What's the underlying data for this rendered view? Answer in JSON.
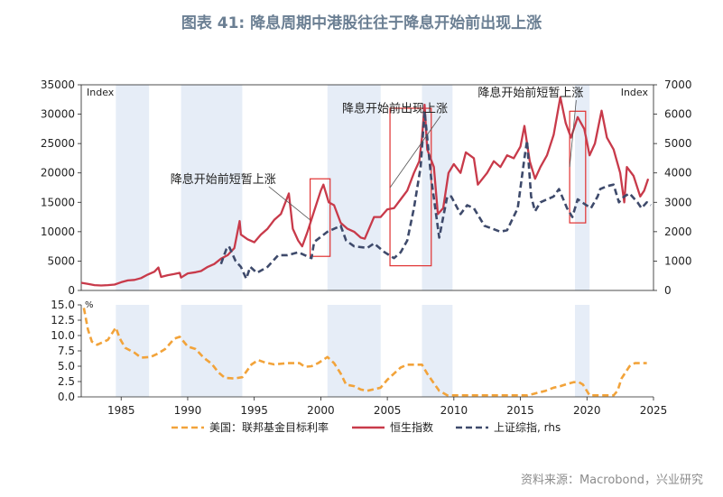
{
  "title": "图表 41: 降息周期中港股往往于降息开始前出现上涨",
  "source": "资料来源：Macrobond，兴业研究",
  "chart_data": {
    "type": "line",
    "title": "图表 41: 降息周期中港股往往于降息开始前出现上涨",
    "x_range": [
      1982,
      2025
    ],
    "x_ticks": [
      1985,
      1990,
      1995,
      2000,
      2005,
      2010,
      2015,
      2020,
      2025
    ],
    "top_panel": {
      "left_axis": {
        "label": "Index",
        "range": [
          0,
          35000
        ],
        "ticks": [
          0,
          5000,
          10000,
          15000,
          20000,
          25000,
          30000,
          35000
        ]
      },
      "right_axis": {
        "label": "Index",
        "range": [
          0,
          7000
        ],
        "ticks": [
          0,
          1000,
          2000,
          3000,
          4000,
          5000,
          6000,
          7000
        ]
      }
    },
    "bottom_panel": {
      "label": "%",
      "range": [
        0,
        15
      ],
      "ticks": [
        0.0,
        2.5,
        5.0,
        7.5,
        10.0,
        12.5,
        15.0
      ],
      "tick_labels": [
        "0.0",
        "2.5",
        "5.0",
        "7.5",
        "10.0",
        "12.5",
        "15.0"
      ]
    },
    "shaded_periods": [
      [
        1984.6,
        1987.1
      ],
      [
        1989.5,
        1994.1
      ],
      [
        2000.5,
        2004.5
      ],
      [
        2007.6,
        2009.9
      ],
      [
        2019.1,
        2020.2
      ]
    ],
    "rectangles": [
      {
        "x": [
          1999.2,
          2000.7
        ],
        "y": [
          5800,
          19000
        ]
      },
      {
        "x": [
          2005.2,
          2008.3
        ],
        "y": [
          4200,
          31000
        ]
      },
      {
        "x": [
          2018.7,
          2019.9
        ],
        "y": [
          11500,
          30500
        ]
      }
    ],
    "annotations": [
      {
        "text": "降息开始前出现上涨",
        "x": 2001.6,
        "y": 30300,
        "arrow_to": [
          2005.2,
          17500
        ]
      },
      {
        "text": "降息开始前短暂上涨",
        "x": 1988.7,
        "y": 18300,
        "arrow_to": [
          1999.2,
          12000
        ]
      },
      {
        "text": "降息开始前短暂上涨",
        "x": 2011.8,
        "y": 33000,
        "arrow_to": [
          2018.7,
          21000
        ]
      }
    ],
    "series": [
      {
        "name": "美国：联邦基金目标利率",
        "axis": "bottom",
        "color": "#f2a33a",
        "style": "dashed",
        "x": [
          1982.2,
          1982.5,
          1982.8,
          1983.2,
          1984.0,
          1984.6,
          1984.9,
          1985.3,
          1986.0,
          1986.5,
          1987.2,
          1987.7,
          1988.3,
          1989.0,
          1989.4,
          1990.0,
          1990.6,
          1991.2,
          1991.8,
          1992.3,
          1992.8,
          1993.5,
          1994.1,
          1994.8,
          1995.3,
          1995.8,
          1996.5,
          1997.5,
          1998.4,
          1998.8,
          1999.3,
          1999.8,
          2000.5,
          2001.0,
          2001.5,
          2001.9,
          2002.5,
          2003.0,
          2003.5,
          2004.5,
          2005.0,
          2005.5,
          2006.0,
          2006.5,
          2007.6,
          2008.0,
          2008.5,
          2008.9,
          2009.5,
          2012.0,
          2015.5,
          2016.0,
          2016.9,
          2017.5,
          2018.0,
          2018.5,
          2019.0,
          2019.4,
          2019.7,
          2020.2,
          2021.0,
          2022.0,
          2022.3,
          2022.6,
          2022.9,
          2023.2,
          2023.6,
          2024.5
        ],
        "values": [
          14.5,
          11.0,
          9.0,
          8.5,
          9.3,
          11.3,
          9.5,
          8.0,
          7.2,
          6.4,
          6.5,
          7.0,
          7.8,
          9.5,
          9.8,
          8.2,
          7.8,
          6.4,
          5.4,
          4.0,
          3.1,
          3.0,
          3.2,
          5.3,
          6.0,
          5.6,
          5.3,
          5.5,
          5.5,
          4.9,
          5.0,
          5.5,
          6.5,
          5.5,
          3.8,
          2.0,
          1.75,
          1.2,
          1.0,
          1.5,
          2.8,
          3.8,
          4.8,
          5.25,
          5.25,
          3.8,
          2.2,
          1.0,
          0.25,
          0.25,
          0.25,
          0.5,
          1.0,
          1.5,
          1.75,
          2.1,
          2.4,
          2.4,
          2.0,
          0.25,
          0.25,
          0.25,
          1.0,
          3.0,
          4.0,
          5.0,
          5.5,
          5.5
        ]
      },
      {
        "name": "恒生指数",
        "axis": "left",
        "color": "#c83a4a",
        "style": "solid",
        "x": [
          1982.0,
          1982.5,
          1983.0,
          1983.5,
          1984.0,
          1984.5,
          1985.0,
          1985.5,
          1986.0,
          1986.5,
          1987.0,
          1987.5,
          1987.8,
          1988.0,
          1988.5,
          1989.0,
          1989.4,
          1989.5,
          1990.0,
          1990.6,
          1991.0,
          1991.5,
          1992.0,
          1992.5,
          1993.0,
          1993.5,
          1993.9,
          1994.0,
          1994.5,
          1995.0,
          1995.5,
          1996.0,
          1996.5,
          1997.0,
          1997.6,
          1997.9,
          1998.3,
          1998.6,
          1999.0,
          1999.5,
          2000.0,
          2000.2,
          2000.6,
          2001.0,
          2001.5,
          2002.0,
          2002.5,
          2003.0,
          2003.3,
          2004.0,
          2004.5,
          2005.0,
          2005.5,
          2006.0,
          2006.5,
          2007.0,
          2007.4,
          2007.6,
          2007.8,
          2008.0,
          2008.5,
          2008.8,
          2009.2,
          2009.6,
          2010.0,
          2010.5,
          2010.9,
          2011.5,
          2011.8,
          2012.5,
          2013.0,
          2013.5,
          2014.0,
          2014.5,
          2015.0,
          2015.3,
          2015.7,
          2016.1,
          2016.5,
          2017.0,
          2017.5,
          2018.0,
          2018.4,
          2018.8,
          2019.3,
          2019.8,
          2020.2,
          2020.6,
          2021.1,
          2021.5,
          2022.0,
          2022.5,
          2022.8,
          2023.0,
          2023.5,
          2024.0,
          2024.3,
          2024.6
        ],
        "values": [
          1300,
          1100,
          900,
          850,
          900,
          1000,
          1400,
          1700,
          1800,
          2100,
          2700,
          3200,
          3900,
          2300,
          2600,
          2800,
          3000,
          2200,
          2900,
          3100,
          3300,
          4000,
          4500,
          5400,
          6000,
          7200,
          11800,
          9500,
          8700,
          8200,
          9500,
          10500,
          12000,
          13000,
          16500,
          10500,
          8500,
          7500,
          10000,
          13500,
          17000,
          18000,
          15000,
          14500,
          11500,
          10500,
          10000,
          9000,
          8800,
          12500,
          12500,
          13800,
          14000,
          15500,
          17000,
          20000,
          22000,
          26000,
          31600,
          24000,
          21000,
          13000,
          14000,
          20000,
          21500,
          20000,
          23500,
          22500,
          18000,
          20000,
          22000,
          21000,
          23000,
          22500,
          24500,
          28000,
          22000,
          19000,
          21000,
          23000,
          26500,
          32900,
          28500,
          26000,
          29500,
          27500,
          23000,
          25000,
          30600,
          26000,
          24000,
          20000,
          15000,
          21000,
          19500,
          16000,
          17000,
          19000
        ]
      },
      {
        "name": "上证综指, rhs",
        "axis": "right",
        "color": "#3e4a6b",
        "style": "dashed",
        "x": [
          1992.5,
          1992.9,
          1993.1,
          1993.6,
          1994.0,
          1994.4,
          1994.7,
          1995.2,
          1996.0,
          1996.8,
          1997.5,
          1998.3,
          1998.8,
          1999.3,
          1999.5,
          2000.5,
          2001.5,
          2001.9,
          2002.5,
          2003.5,
          2004.0,
          2004.8,
          2005.5,
          2006.0,
          2006.5,
          2007.0,
          2007.5,
          2007.8,
          2008.3,
          2008.9,
          2009.5,
          2009.8,
          2010.5,
          2011.0,
          2011.5,
          2012.3,
          2012.9,
          2013.5,
          2014.0,
          2014.8,
          2015.3,
          2015.5,
          2015.8,
          2016.1,
          2016.5,
          2017.5,
          2017.9,
          2018.5,
          2018.9,
          2019.3,
          2019.8,
          2020.3,
          2020.8,
          2021.0,
          2021.5,
          2022.0,
          2022.4,
          2022.8,
          2023.2,
          2023.8,
          2024.1,
          2024.5,
          2024.8
        ],
        "values": [
          900,
          1400,
          1500,
          1000,
          800,
          400,
          800,
          600,
          800,
          1200,
          1200,
          1300,
          1200,
          1100,
          1650,
          2000,
          2200,
          1700,
          1500,
          1450,
          1600,
          1300,
          1100,
          1300,
          1700,
          2800,
          4200,
          6100,
          3800,
          1800,
          3200,
          3200,
          2600,
          2900,
          2800,
          2200,
          2100,
          2000,
          2050,
          2800,
          4500,
          5100,
          3200,
          2700,
          3000,
          3200,
          3450,
          2800,
          2500,
          3100,
          2950,
          2800,
          3200,
          3450,
          3550,
          3600,
          3000,
          3200,
          3300,
          3000,
          2800,
          3000,
          2900
        ]
      }
    ]
  }
}
